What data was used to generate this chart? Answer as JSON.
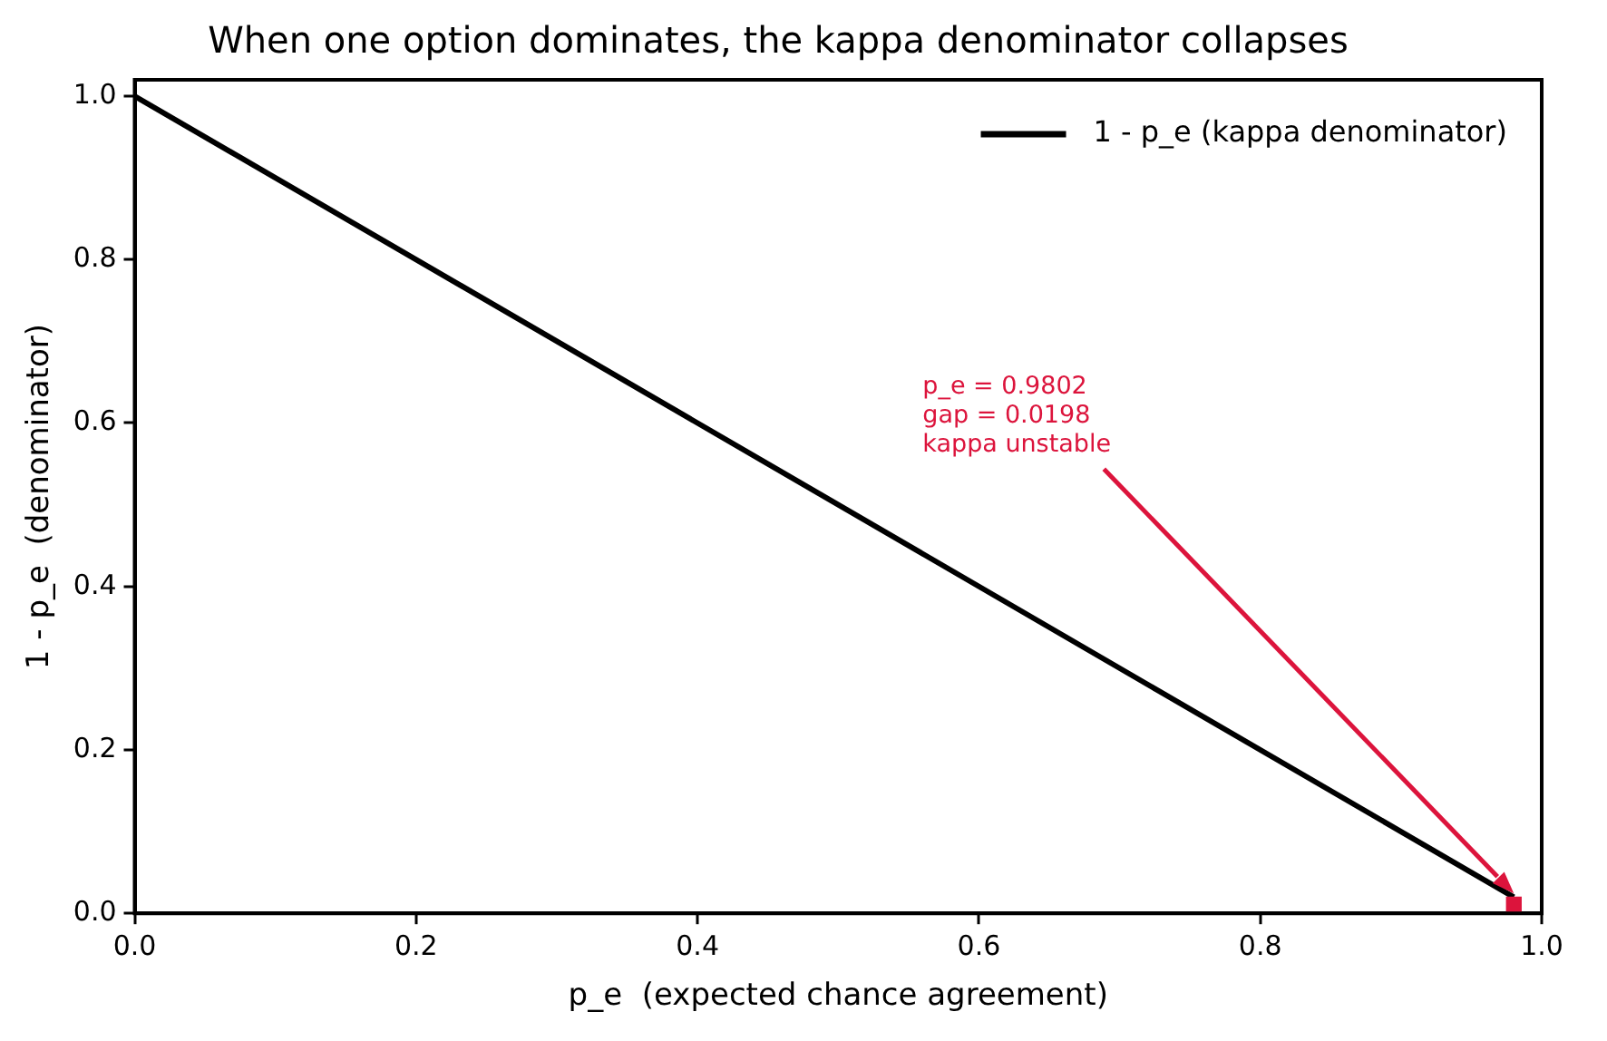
{
  "chart_data": {
    "type": "line",
    "title": "When one option dominates, the kappa denominator collapses",
    "xlabel": "p_e  (expected chance agreement)",
    "ylabel": "1 - p_e  (denominator)",
    "x": [
      0,
      0.9802
    ],
    "series": [
      {
        "name": "1 - p_e (kappa denominator)",
        "color": "#000000",
        "values": [
          1,
          0.0198
        ]
      },
      {
        "type": "bar",
        "color": "#dc143c",
        "values": [
          null,
          0.0198
        ]
      }
    ],
    "xlim": [
      0,
      1
    ],
    "ylim": [
      0,
      1.02
    ],
    "xticks": [
      {
        "value": 0,
        "label": "0.0"
      },
      0.2,
      0.4,
      0.6,
      0.8,
      {
        "value": 1,
        "label": "1.0"
      }
    ],
    "yticks": [
      {
        "value": 0,
        "label": "0.0"
      },
      0.2,
      0.4,
      0.6,
      0.8,
      {
        "value": 1,
        "label": "1.0"
      }
    ],
    "annotations": [
      "p_e = 0.9802\ngap = 0.0198\nkappa unstable"
    ],
    "legend": "top right",
    "grid": false,
    "marker": "none",
    "line_style": "solid"
  }
}
